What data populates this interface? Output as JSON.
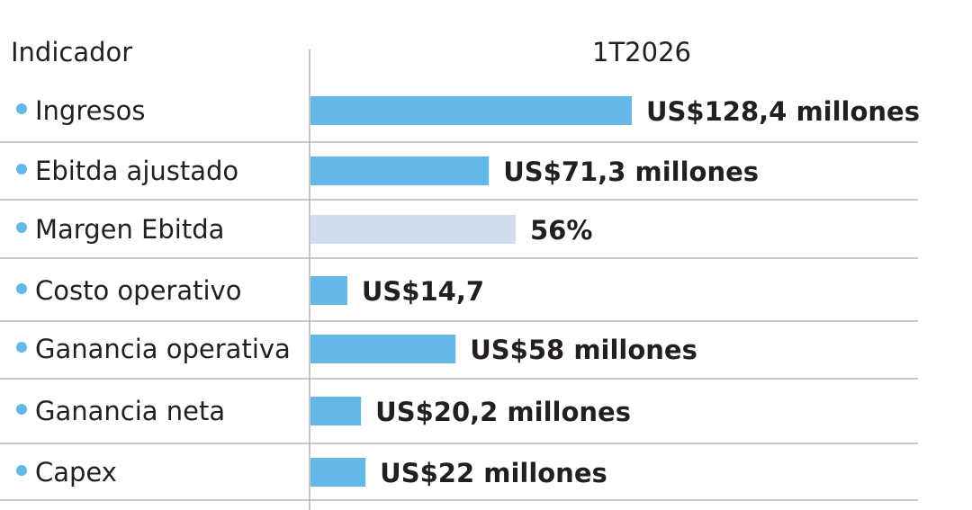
{
  "header": {
    "indicator_label": "Indicador",
    "period_label": "1T2026"
  },
  "colors": {
    "bar": "#63b8e8",
    "bar_percent": "#d3ddf0",
    "dot": "#63b8e8",
    "grid": "#a7a9ac",
    "text": "#231f20"
  },
  "chart_data": {
    "type": "bar",
    "orientation": "horizontal",
    "title": "",
    "xlabel": "",
    "ylabel": "",
    "categories": [
      "Ingresos",
      "Ebitda ajustado",
      "Margen Ebitda",
      "Costo operativo",
      "Ganancia operativa",
      "Ganancia neta",
      "Capex"
    ],
    "values": [
      128.4,
      71.3,
      56,
      14.7,
      58,
      20.2,
      22
    ],
    "units": [
      "US$ millones",
      "US$ millones",
      "%",
      "US$",
      "US$ millones",
      "US$ millones",
      "US$ millones"
    ],
    "data_labels": [
      "US$128,4 millones",
      "US$71,3 millones",
      "56%",
      "US$14,7",
      "US$58 millones",
      "US$20,2 millones",
      "US$22 millones"
    ],
    "series": [
      {
        "values": [
          128.4,
          71.3,
          56,
          14.7,
          58,
          20.2,
          22
        ]
      }
    ],
    "grid": true,
    "legend": "none"
  }
}
